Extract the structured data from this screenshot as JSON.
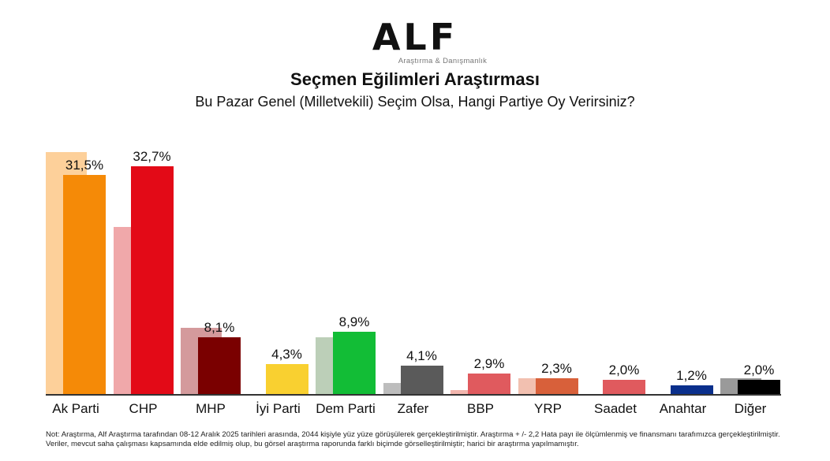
{
  "header": {
    "logo_text": "ALF",
    "logo_subtitle": "Araştırma & Danışmanlık",
    "title": "Seçmen Eğilimleri Araştırması",
    "subtitle": "Bu Pazar Genel (Milletvekili) Seçim Olsa, Hangi Partiye Oy Verirsiniz?"
  },
  "footer": {
    "note": "Not: Araştırma, Alf Araştırma tarafından 08-12 Aralık 2025 tarihleri arasında, 2044 kişiyle yüz yüze görüşülerek gerçekleştirilmiştir. Araştırma + /- 2,2 Hata payı ile ölçümlenmiş ve finansmanı tarafımızca gerçekleştirilmiştir. Veriler, mevcut saha çalışması kapsamında elde edilmiş olup, bu görsel araştırma raporunda farklı biçimde görselleştirilmiştir; harici bir araştırma yapılmamıştır."
  },
  "chart_data": {
    "type": "bar",
    "title": "Seçmen Eğilimleri Araştırması",
    "subtitle": "Bu Pazar Genel (Milletvekili) Seçim Olsa, Hangi Partiye Oy Verirsiniz?",
    "xlabel": "",
    "ylabel": "",
    "ylim": [
      0,
      35
    ],
    "grid": false,
    "legend": "none",
    "categories": [
      "Ak Parti",
      "CHP",
      "MHP",
      "İyi Parti",
      "Dem Parti",
      "Zafer",
      "BBP",
      "YRP",
      "Saadet",
      "Anahtar",
      "Diğer"
    ],
    "series": [
      {
        "name": "Previous (shadow, unlabeled)",
        "values": [
          34.7,
          24.0,
          9.5,
          0,
          8.2,
          1.6,
          0.6,
          2.3,
          0,
          0,
          2.3
        ]
      },
      {
        "name": "Current",
        "values": [
          31.5,
          32.7,
          8.1,
          4.3,
          8.9,
          4.1,
          2.9,
          2.3,
          2.0,
          1.2,
          2.0
        ]
      }
    ],
    "value_labels": [
      "31,5%",
      "32,7%",
      "8,1%",
      "4,3%",
      "8,9%",
      "4,1%",
      "2,9%",
      "2,3%",
      "2,0%",
      "1,2%",
      "2,0%"
    ],
    "colors": [
      "#f58a07",
      "#e30a17",
      "#7a0000",
      "#f9d030",
      "#12bd36",
      "#5a5a5a",
      "#e05a5e",
      "#d8603a",
      "#e05a5e",
      "#0a2f8c",
      "#000000"
    ],
    "shadow_colors": [
      "#fdd09a",
      "#f0a8aa",
      "#d49a9c",
      "#ffffff",
      "#bccfb8",
      "#bdbdbd",
      "#f2b6ae",
      "#f2c0b0",
      "#ffffff",
      "#ffffff",
      "#9a9a9a"
    ]
  }
}
